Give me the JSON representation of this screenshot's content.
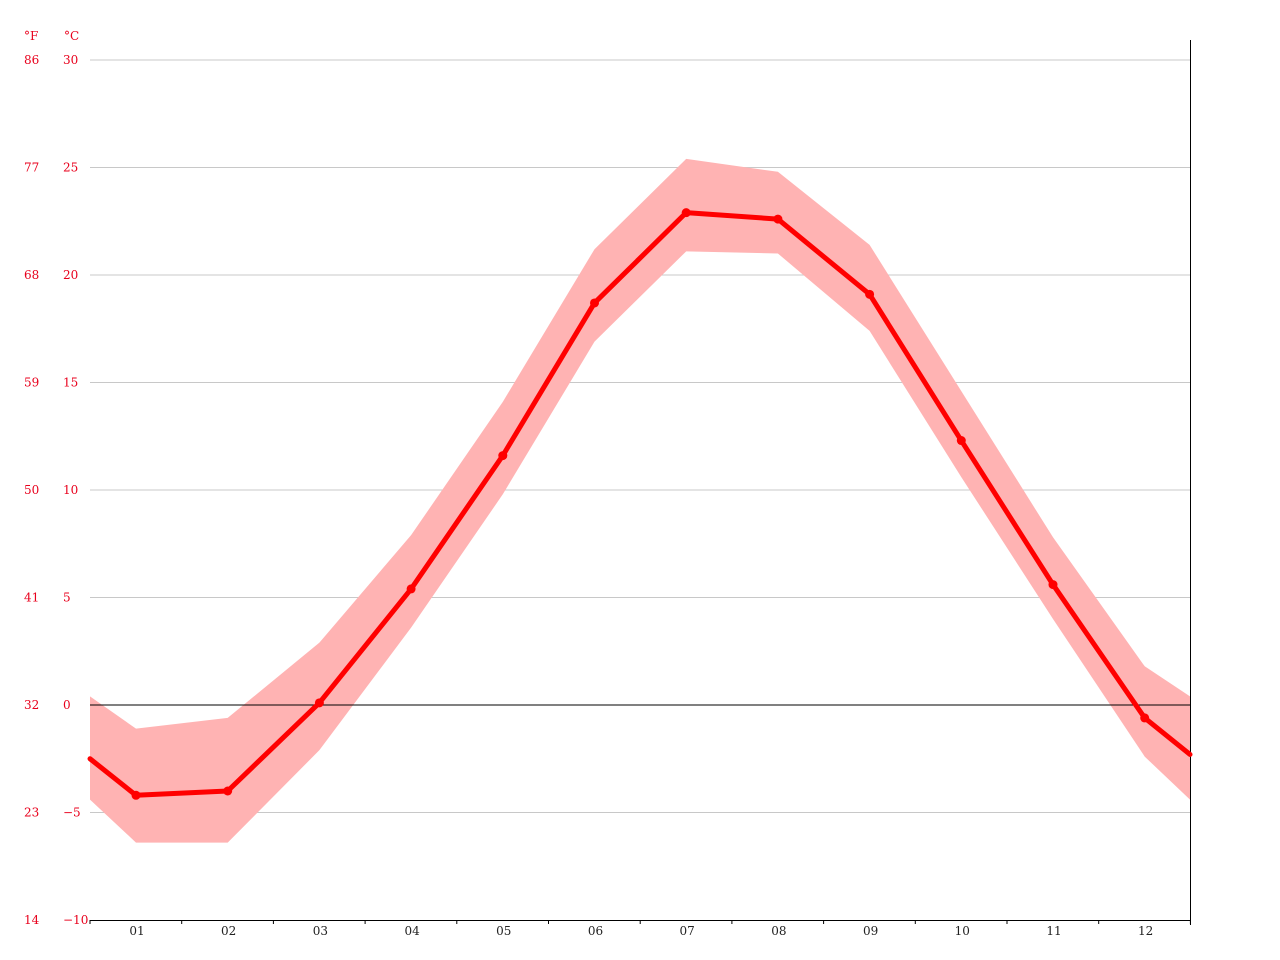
{
  "chart_data": {
    "type": "line",
    "units": {
      "fahrenheit": "°F",
      "celsius": "°C"
    },
    "categories": [
      "01",
      "02",
      "03",
      "04",
      "05",
      "06",
      "07",
      "08",
      "09",
      "10",
      "11",
      "12"
    ],
    "y_ticks_celsius": [
      30,
      25,
      20,
      15,
      10,
      5,
      0,
      -5,
      -10
    ],
    "y_tick_labels_celsius": [
      "30",
      "25",
      "20",
      "15",
      "10",
      "5",
      "0",
      "−5",
      "−10"
    ],
    "y_tick_labels_fahrenheit": [
      "86",
      "77",
      "68",
      "59",
      "50",
      "41",
      "32",
      "23",
      "14"
    ],
    "ylim": [
      -10,
      30
    ],
    "grid": true,
    "series": [
      {
        "values": [
          -4.2,
          -4.0,
          0.1,
          5.4,
          11.6,
          18.7,
          22.9,
          22.6,
          19.1,
          12.3,
          5.6,
          -0.6
        ]
      }
    ],
    "range_band": {
      "upper": [
        -1.1,
        -0.6,
        2.9,
        7.9,
        14.1,
        21.2,
        25.4,
        24.8,
        21.4,
        14.6,
        7.8,
        1.8
      ],
      "lower": [
        -6.4,
        -6.4,
        -2.1,
        3.6,
        9.8,
        16.9,
        21.1,
        21.0,
        17.4,
        10.6,
        4.0,
        -2.4
      ]
    },
    "edge_values": {
      "start": -2.5,
      "end": -2.3,
      "band_start": [
        0.4,
        -4.4
      ],
      "band_end": [
        0.4,
        -4.4
      ]
    },
    "colors": {
      "line": "#ff0000",
      "band": "#ffb3b3",
      "grid": "#c8c8c8",
      "zero_line": "#000000",
      "tick_text": "#e8001c"
    }
  }
}
